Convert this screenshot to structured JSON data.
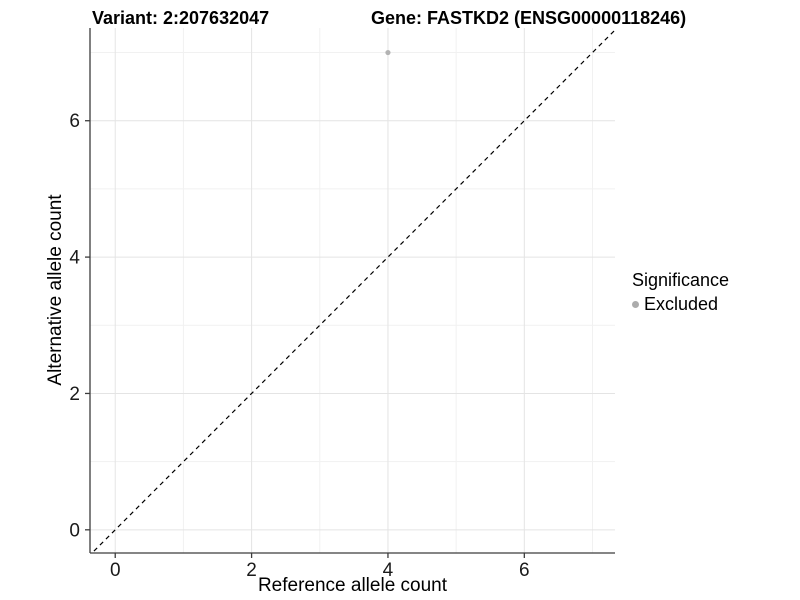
{
  "header": {
    "variant_title": "Variant: 2:207632047",
    "gene_title": "Gene: FASTKD2 (ENSG00000118246)"
  },
  "chart_data": {
    "type": "scatter",
    "xlabel": "Reference allele count",
    "ylabel": "Alternative allele count",
    "xlim": [
      -0.37,
      7.33
    ],
    "ylim": [
      -0.34,
      7.36
    ],
    "x_ticks": [
      0,
      2,
      4,
      6
    ],
    "y_ticks": [
      0,
      2,
      4,
      6
    ],
    "x_minor_gridlines": [
      1,
      3,
      5,
      7
    ],
    "y_minor_gridlines": [
      1,
      3,
      5,
      7
    ],
    "grid": "major and minor, light grey on white",
    "legend_position": "right",
    "reference_line": {
      "type": "identity",
      "slope": 1,
      "intercept": 0,
      "style": "dashed",
      "color": "#000000"
    },
    "series": [
      {
        "name": "Excluded",
        "color": "#B3B3B3",
        "point_radius": 2.6,
        "points": [
          [
            4,
            7
          ]
        ]
      }
    ]
  },
  "legend": {
    "title": "Significance",
    "items": [
      {
        "label": "Excluded",
        "color": "#ACACAC"
      }
    ]
  },
  "colors": {
    "background": "#FFFFFF",
    "grid_major": "#E4E4E4",
    "grid_minor": "#F1F1F1",
    "axis_line": "#3C3C3C",
    "tick_text": "#1A1A1A",
    "excluded_point": "#B3B3B3"
  }
}
